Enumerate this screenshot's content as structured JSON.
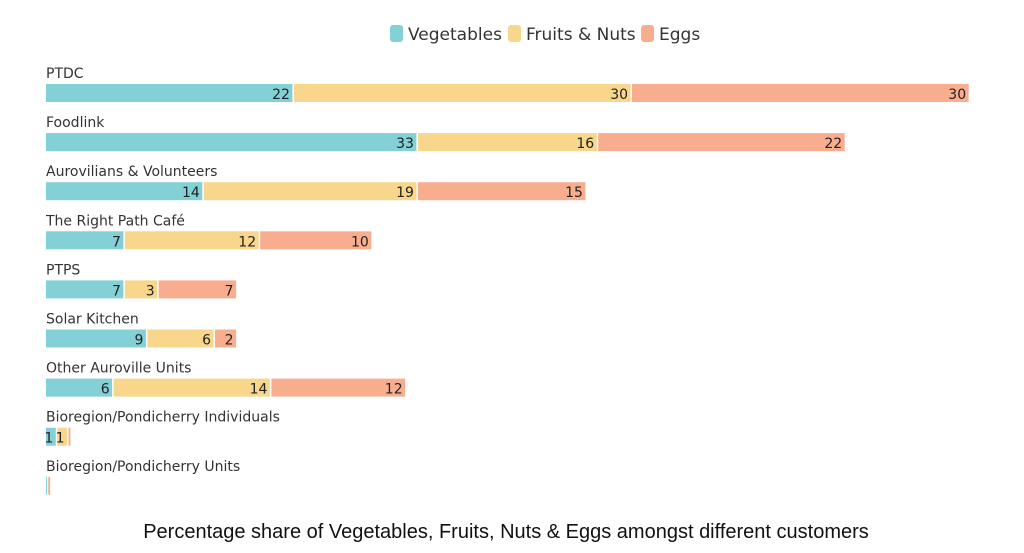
{
  "caption": "Percentage share of Vegetables, Fruits, Nuts & Eggs amongst different customers",
  "chart_data": {
    "type": "bar",
    "orientation": "horizontal",
    "stacked": true,
    "legend_position": "top-center",
    "grid": false,
    "categories": [
      "PTDC",
      "Foodlink",
      "Aurovilians & Volunteers",
      "The Right Path Café",
      "PTPS",
      "Solar Kitchen",
      "Other Auroville Units",
      "Bioregion/Pondicherry Individuals",
      "Bioregion/Pondicherry Units"
    ],
    "series": [
      {
        "name": "Vegetables",
        "color": "#83d0d6",
        "values": [
          22,
          33,
          14,
          7,
          7,
          9,
          6,
          1,
          0.2
        ]
      },
      {
        "name": "Fruits & Nuts",
        "color": "#f8d68c",
        "values": [
          30,
          16,
          19,
          12,
          3,
          6,
          14,
          1,
          0
        ]
      },
      {
        "name": "Eggs",
        "color": "#f8ad8f",
        "values": [
          30,
          22,
          15,
          10,
          7,
          2,
          12,
          0.3,
          0.3
        ]
      }
    ]
  }
}
